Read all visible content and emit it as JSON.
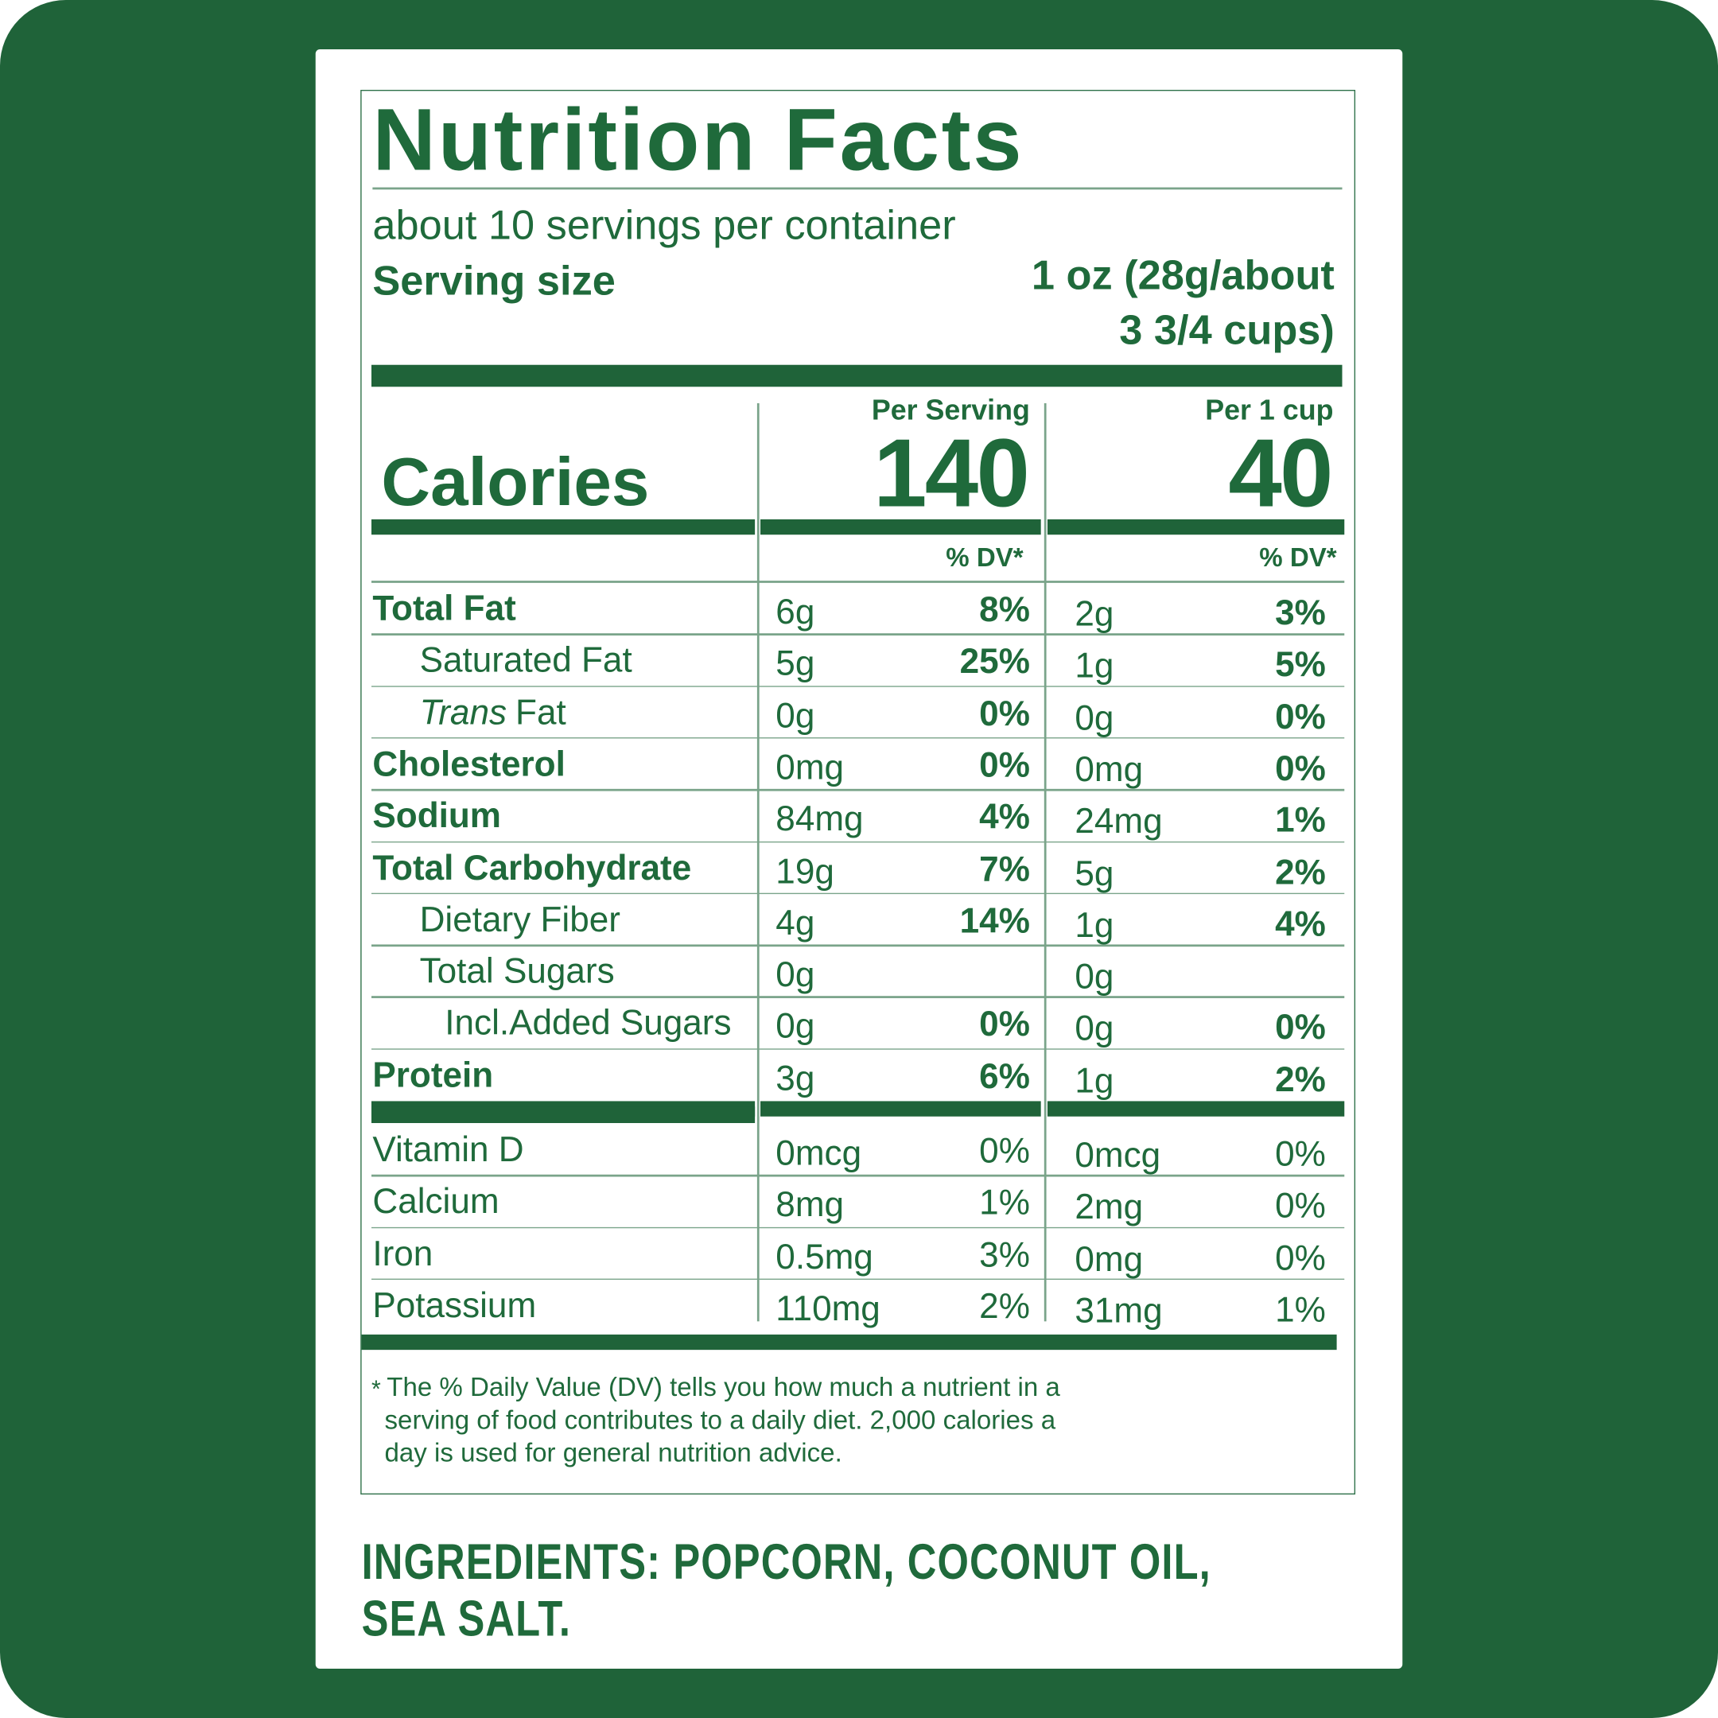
{
  "title": "Nutrition Facts",
  "servings": "about 10 servings per container",
  "serving_size": {
    "label": "Serving size",
    "value_lines": [
      "1 oz (28g/about",
      "3 3/4 cups)"
    ]
  },
  "calories": {
    "label": "Calories",
    "columns": [
      {
        "header": "Per Serving",
        "value": "140"
      },
      {
        "header": "Per 1 cup",
        "value": "40"
      }
    ]
  },
  "dv_headers": [
    "% DV*",
    "% DV*"
  ],
  "nutrients": [
    {
      "name": "Total Fat",
      "bold": true,
      "amount1": "6g",
      "dv1": "8%",
      "amount2": "2g",
      "dv2": "3%"
    },
    {
      "name": "Saturated Fat",
      "indent": 1,
      "amount1": "5g",
      "dv1": "25%",
      "amount2": "1g",
      "dv2": "5%"
    },
    {
      "name_italic": "Trans",
      "name": "Fat",
      "indent": 1,
      "amount1": "0g",
      "dv1": "0%",
      "amount2": "0g",
      "dv2": "0%"
    },
    {
      "name": "Cholesterol",
      "bold": true,
      "amount1": "0mg",
      "dv1": "0%",
      "amount2": "0mg",
      "dv2": "0%"
    },
    {
      "name": "Sodium",
      "bold": true,
      "amount1": "84mg",
      "dv1": "4%",
      "amount2": "24mg",
      "dv2": "1%"
    },
    {
      "name": "Total Carbohydrate",
      "bold": true,
      "amount1": "19g",
      "dv1": "7%",
      "amount2": "5g",
      "dv2": "2%"
    },
    {
      "name": "Dietary Fiber",
      "indent": 1,
      "amount1": "4g",
      "dv1": "14%",
      "amount2": "1g",
      "dv2": "4%"
    },
    {
      "name": "Total Sugars",
      "indent": 1,
      "amount1": "0g",
      "amount2": "0g"
    },
    {
      "name": "Incl.Added Sugars",
      "indent": 2,
      "amount1": "0g",
      "dv1": "0%",
      "amount2": "0g",
      "dv2": "0%"
    },
    {
      "name": "Protein",
      "bold": true,
      "amount1": "3g",
      "dv1": "6%",
      "amount2": "1g",
      "dv2": "2%"
    }
  ],
  "vitamins": [
    {
      "name": "Vitamin D",
      "amount1": "0mcg",
      "dv1": "0%",
      "amount2": "0mcg",
      "dv2": "0%"
    },
    {
      "name": "Calcium",
      "amount1": "8mg",
      "dv1": "1%",
      "amount2": "2mg",
      "dv2": "0%"
    },
    {
      "name": "Iron",
      "amount1": "0.5mg",
      "dv1": "3%",
      "amount2": "0mg",
      "dv2": "0%"
    },
    {
      "name": "Potassium",
      "amount1": "110mg",
      "dv1": "2%",
      "amount2": "31mg",
      "dv2": "1%"
    }
  ],
  "footnote_mark": "*",
  "footnote_lines": [
    "The % Daily Value (DV) tells you how much a nutrient in a",
    "serving of food contributes to a daily diet. 2,000 calories a",
    "day is used for general nutrition advice."
  ],
  "ingredients_lines": [
    "INGREDIENTS: POPCORN, COCONUT OIL,",
    "SEA SALT."
  ]
}
